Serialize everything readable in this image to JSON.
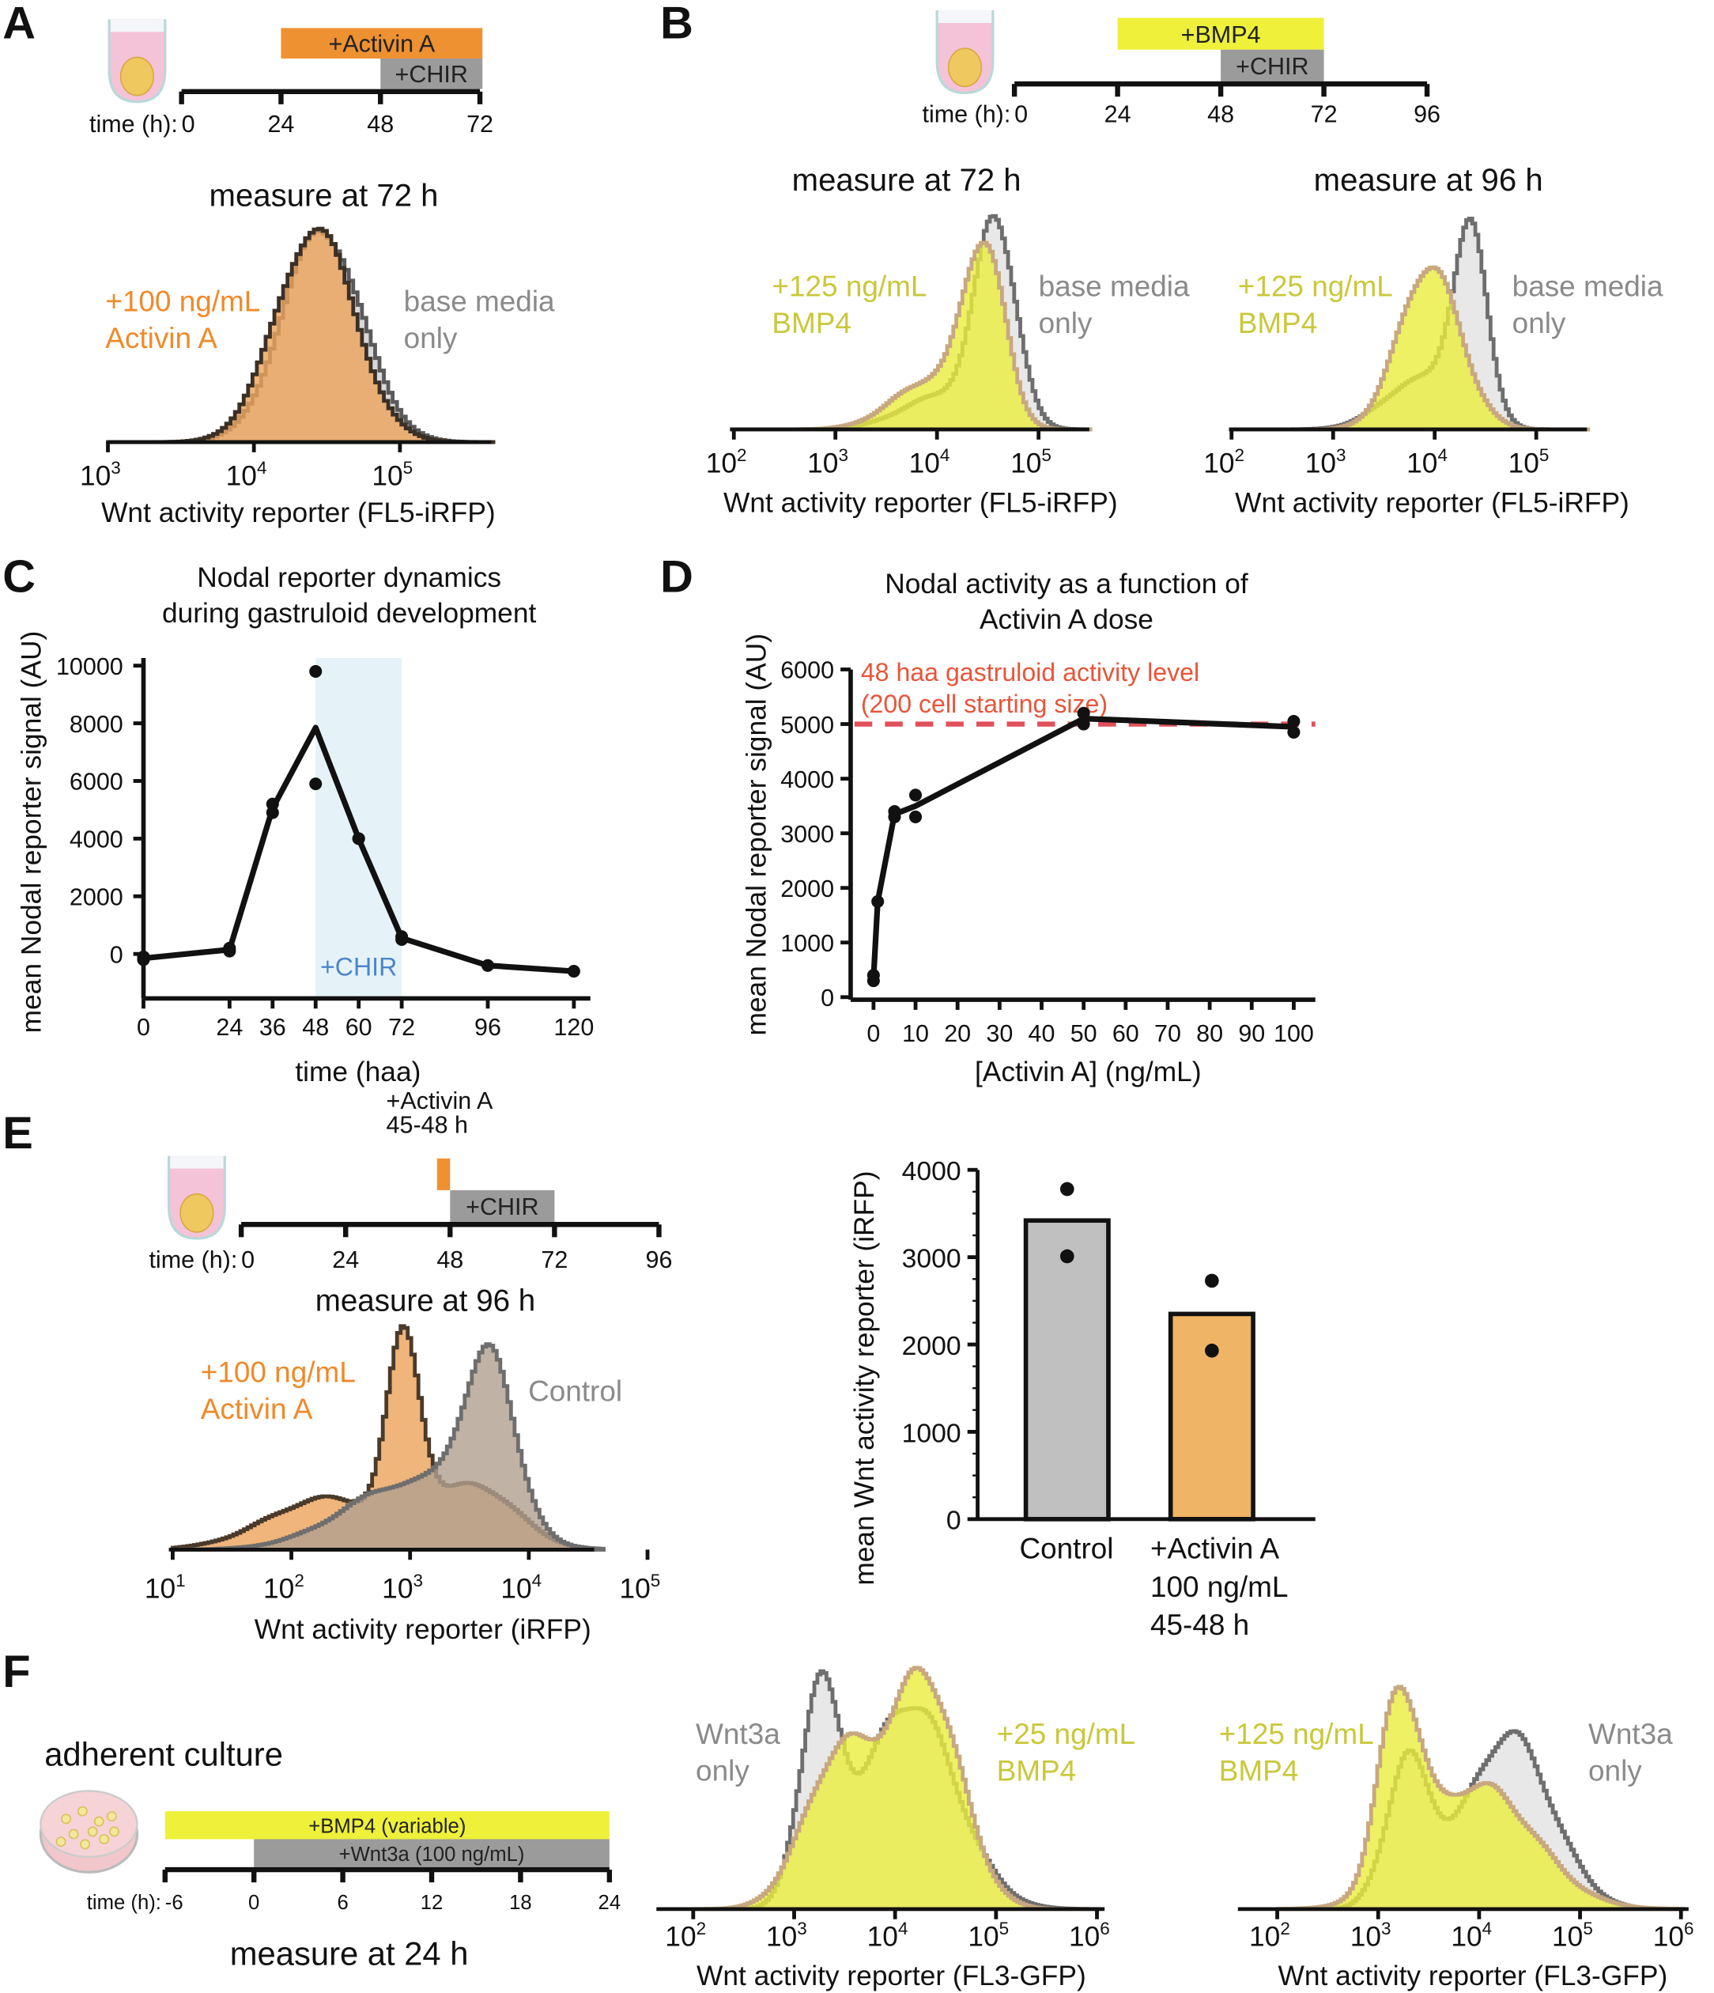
{
  "panel_labels": [
    "A",
    "B",
    "C",
    "D",
    "E",
    "F"
  ],
  "timelines": [
    {
      "panel": "A",
      "prefix": "time (h):",
      "ticks": [
        0,
        24,
        48,
        72
      ],
      "treatments": [
        {
          "label": "+Activin A",
          "start": 24,
          "end": 72,
          "color": "#ee9130"
        },
        {
          "label": "+CHIR",
          "start": 48,
          "end": 72,
          "color": "#9b9b9b"
        }
      ]
    },
    {
      "panel": "B",
      "prefix": "time (h):",
      "ticks": [
        0,
        24,
        48,
        72,
        96
      ],
      "treatments": [
        {
          "label": "+BMP4",
          "start": 24,
          "end": 72,
          "color": "#eef03a"
        },
        {
          "label": "+CHIR",
          "start": 48,
          "end": 72,
          "color": "#9b9b9b"
        }
      ]
    },
    {
      "panel": "E",
      "prefix": "time (h):",
      "ticks": [
        0,
        24,
        48,
        72,
        96
      ],
      "treatments": [
        {
          "label_lines": [
            "+Activin A",
            "45-48 h"
          ],
          "start": 45,
          "end": 48,
          "color": "#ee9130"
        },
        {
          "label": "+CHIR",
          "start": 48,
          "end": 72,
          "color": "#9b9b9b"
        }
      ],
      "measure": "measure at 96 h"
    },
    {
      "panel": "F",
      "culture": "adherent culture",
      "prefix": "time (h):",
      "ticks": [
        -6,
        0,
        6,
        12,
        18,
        24
      ],
      "treatments": [
        {
          "label": "+BMP4 (variable)",
          "start": -6,
          "end": 24,
          "color": "#eef03a"
        },
        {
          "label": "+Wnt3a (100 ng/mL)",
          "start": 0,
          "end": 24,
          "color": "#9b9b9b"
        }
      ],
      "measure": "measure at 24 h"
    }
  ],
  "chart_data": [
    {
      "panel": "A",
      "type": "histogram",
      "title": "measure at 72 h",
      "xlabel": "Wnt activity reporter (FL5-iRFP)",
      "x_scale": "log10",
      "xtick_base": "10",
      "xtick_exponents": [
        3,
        4,
        5
      ],
      "series": [
        {
          "name_lines": [
            "base media",
            "only"
          ],
          "label_color": "#8a8a8a",
          "color": "#5a5a5a",
          "fill": "#cfcfcf",
          "components": [
            {
              "mu": 4.47,
              "sigma": 0.27,
              "weight": 1
            }
          ]
        },
        {
          "name_lines": [
            "+100 ng/mL",
            "Activin A"
          ],
          "label_color": "#ef8a2a",
          "color": "#3a3026",
          "fill": "#eca35a",
          "components": [
            {
              "mu": 4.42,
              "sigma": 0.27,
              "weight": 1
            }
          ]
        }
      ]
    },
    {
      "panel": "B",
      "type": "histogram",
      "title": "measure at 72 h",
      "xlabel": "Wnt activity reporter (FL5-iRFP)",
      "x_scale": "log10",
      "xtick_base": "10",
      "xtick_exponents": [
        2,
        3,
        4,
        5
      ],
      "series": [
        {
          "name_lines": [
            "base media",
            "only"
          ],
          "label_color": "#8a8a8a",
          "color": "#6e6e6e",
          "fill": "#e2e2e2",
          "components": [
            {
              "mu": 4.58,
              "sigma": 0.2,
              "weight": 0.75
            },
            {
              "mu": 4.05,
              "sigma": 0.4,
              "weight": 0.25
            }
          ]
        },
        {
          "name_lines": [
            "+125 ng/mL",
            "BMP4"
          ],
          "label_color": "#c9c83a",
          "color": "#c8a880",
          "fill": "#e8ee3c",
          "components": [
            {
              "mu": 4.47,
              "sigma": 0.2,
              "weight": 0.65
            },
            {
              "mu": 3.95,
              "sigma": 0.38,
              "weight": 0.35
            }
          ]
        }
      ]
    },
    {
      "panel": "B",
      "type": "histogram",
      "title": "measure at 96 h",
      "xlabel": "Wnt activity reporter (FL5-iRFP)",
      "x_scale": "log10",
      "xtick_base": "10",
      "xtick_exponents": [
        2,
        3,
        4,
        5
      ],
      "series": [
        {
          "name_lines": [
            "base media",
            "only"
          ],
          "label_color": "#8a8a8a",
          "color": "#6e6e6e",
          "fill": "#e2e2e2",
          "components": [
            {
              "mu": 4.35,
              "sigma": 0.17,
              "weight": 0.65
            },
            {
              "mu": 3.85,
              "sigma": 0.35,
              "weight": 0.35
            }
          ]
        },
        {
          "name_lines": [
            "+125 ng/mL",
            "BMP4"
          ],
          "label_color": "#c9c83a",
          "color": "#c8a880",
          "fill": "#e8ee3c",
          "components": [
            {
              "mu": 3.95,
              "sigma": 0.3,
              "weight": 1
            }
          ]
        }
      ]
    },
    {
      "panel": "C",
      "type": "line",
      "title_lines": [
        "Nodal reporter dynamics",
        "during gastruloid development"
      ],
      "xlabel": "time (haa)",
      "ylabel": "mean Nodal reporter signal (AU)",
      "xticks": [
        0,
        24,
        36,
        48,
        60,
        72,
        96,
        120
      ],
      "yticks": [
        0,
        2000,
        4000,
        6000,
        8000,
        10000
      ],
      "xlim": [
        0,
        125
      ],
      "ylim": [
        -1540,
        10260
      ],
      "shaded_region": {
        "x": [
          48,
          72
        ],
        "label": "+CHIR",
        "color": "#e5f3f8",
        "label_color": "#4a86c8"
      },
      "points": [
        [
          0,
          -100
        ],
        [
          0,
          -200
        ],
        [
          24,
          200
        ],
        [
          24,
          100
        ],
        [
          36,
          5200
        ],
        [
          36,
          4900
        ],
        [
          48,
          9800
        ],
        [
          48,
          5900
        ],
        [
          60,
          4000
        ],
        [
          60,
          4000
        ],
        [
          72,
          500
        ],
        [
          72,
          600
        ],
        [
          96,
          -400
        ],
        [
          120,
          -600
        ]
      ],
      "mean_line": {
        "x": [
          0,
          24,
          36,
          48,
          60,
          72,
          96,
          120
        ],
        "y": [
          -150,
          150,
          5050,
          7850,
          4000,
          550,
          -400,
          -600
        ]
      }
    },
    {
      "panel": "D",
      "type": "line",
      "title_lines": [
        "Nodal activity as a function of",
        "Activin A dose"
      ],
      "xlabel": "[Activin A] (ng/mL)",
      "ylabel": "mean Nodal reporter signal (AU)",
      "xticks": [
        0,
        10,
        20,
        30,
        40,
        50,
        60,
        70,
        80,
        90,
        100
      ],
      "yticks": [
        0,
        1000,
        2000,
        3000,
        4000,
        5000,
        6000
      ],
      "xlim": [
        -5,
        105
      ],
      "ylim": [
        -50,
        6000
      ],
      "reference_line": {
        "y": 5000,
        "color": "#e0505a",
        "label_lines": [
          "48 haa gastruloid activity level",
          "(200 cell starting size)"
        ],
        "label_color": "#e8553a"
      },
      "points": [
        [
          0,
          400
        ],
        [
          0,
          300
        ],
        [
          1,
          1750
        ],
        [
          5,
          3400
        ],
        [
          5,
          3300
        ],
        [
          10,
          3700
        ],
        [
          10,
          3300
        ],
        [
          50,
          5200
        ],
        [
          50,
          5000
        ],
        [
          100,
          5050
        ],
        [
          100,
          4850
        ]
      ],
      "mean_line": {
        "x": [
          0,
          1,
          5,
          10,
          50,
          100
        ],
        "y": [
          350,
          1750,
          3350,
          3500,
          5100,
          4950
        ]
      }
    },
    {
      "panel": "E",
      "type": "histogram",
      "title": "measure at 96 h",
      "xlabel": "Wnt activity reporter (iRFP)",
      "x_scale": "log10",
      "xtick_base": "10",
      "xtick_exponents": [
        1,
        2,
        3,
        4,
        5
      ],
      "series": [
        {
          "name_lines": [
            "+100 ng/mL",
            "Activin A"
          ],
          "label_color": "#ef8a2a",
          "color": "#4a3a2a",
          "fill": "#eca35a",
          "components": [
            {
              "mu": 2.95,
              "sigma": 0.14,
              "weight": 0.35
            },
            {
              "mu": 2.3,
              "sigma": 0.5,
              "weight": 0.35
            },
            {
              "mu": 3.55,
              "sigma": 0.35,
              "weight": 0.3
            }
          ]
        },
        {
          "name_lines": [
            "Control"
          ],
          "label_color": "#8a8a8a",
          "color": "#6e6e6e",
          "fill": "#b0a090",
          "components": [
            {
              "mu": 3.67,
              "sigma": 0.22,
              "weight": 0.5
            },
            {
              "mu": 3.0,
              "sigma": 0.55,
              "weight": 0.5
            }
          ]
        }
      ]
    },
    {
      "panel": "E",
      "type": "bar",
      "ylabel": "mean Wnt activity reporter (iRFP)",
      "yticks": [
        0,
        1000,
        2000,
        3000,
        4000
      ],
      "ylim": [
        0,
        4000
      ],
      "categories": [
        [
          "Control"
        ],
        [
          "+Activin A",
          "100 ng/mL",
          "45-48 h"
        ]
      ],
      "values": [
        3420,
        2350
      ],
      "points": [
        [
          3780,
          3010
        ],
        [
          2730,
          1930
        ]
      ],
      "colors": [
        "#c0c0c0",
        "#f0b466"
      ]
    },
    {
      "panel": "F",
      "type": "histogram",
      "xlabel": "Wnt activity reporter (FL3-GFP)",
      "x_scale": "log10",
      "xtick_base": "10",
      "xtick_exponents": [
        2,
        3,
        4,
        5,
        6
      ],
      "series": [
        {
          "name_lines": [
            "Wnt3a",
            "only"
          ],
          "label_color": "#8a8a8a",
          "color": "#6e6e6e",
          "fill": "#e2e2e2",
          "components": [
            {
              "mu": 3.25,
              "sigma": 0.2,
              "weight": 0.3
            },
            {
              "mu": 4.15,
              "sigma": 0.45,
              "weight": 0.7
            }
          ]
        },
        {
          "name_lines": [
            "+25 ng/mL",
            "BMP4"
          ],
          "label_color": "#c9c83a",
          "color": "#c8a880",
          "fill": "#e8ee3c",
          "components": [
            {
              "mu": 3.45,
              "sigma": 0.35,
              "weight": 0.4
            },
            {
              "mu": 4.3,
              "sigma": 0.35,
              "weight": 0.6
            }
          ]
        }
      ]
    },
    {
      "panel": "F",
      "type": "histogram",
      "xlabel": "Wnt activity reporter (FL3-GFP)",
      "x_scale": "log10",
      "xtick_base": "10",
      "xtick_exponents": [
        2,
        3,
        4,
        5,
        6
      ],
      "series": [
        {
          "name_lines": [
            "Wnt3a",
            "only"
          ],
          "label_color": "#8a8a8a",
          "color": "#6e6e6e",
          "fill": "#e2e2e2",
          "components": [
            {
              "mu": 3.3,
              "sigma": 0.22,
              "weight": 0.3
            },
            {
              "mu": 4.3,
              "sigma": 0.42,
              "weight": 0.7
            }
          ]
        },
        {
          "name_lines": [
            "+125 ng/mL",
            "BMP4"
          ],
          "label_color": "#c9c83a",
          "color": "#c8a880",
          "fill": "#e8ee3c",
          "components": [
            {
              "mu": 3.2,
              "sigma": 0.2,
              "weight": 0.35
            },
            {
              "mu": 4.0,
              "sigma": 0.55,
              "weight": 0.65
            }
          ]
        }
      ]
    }
  ]
}
